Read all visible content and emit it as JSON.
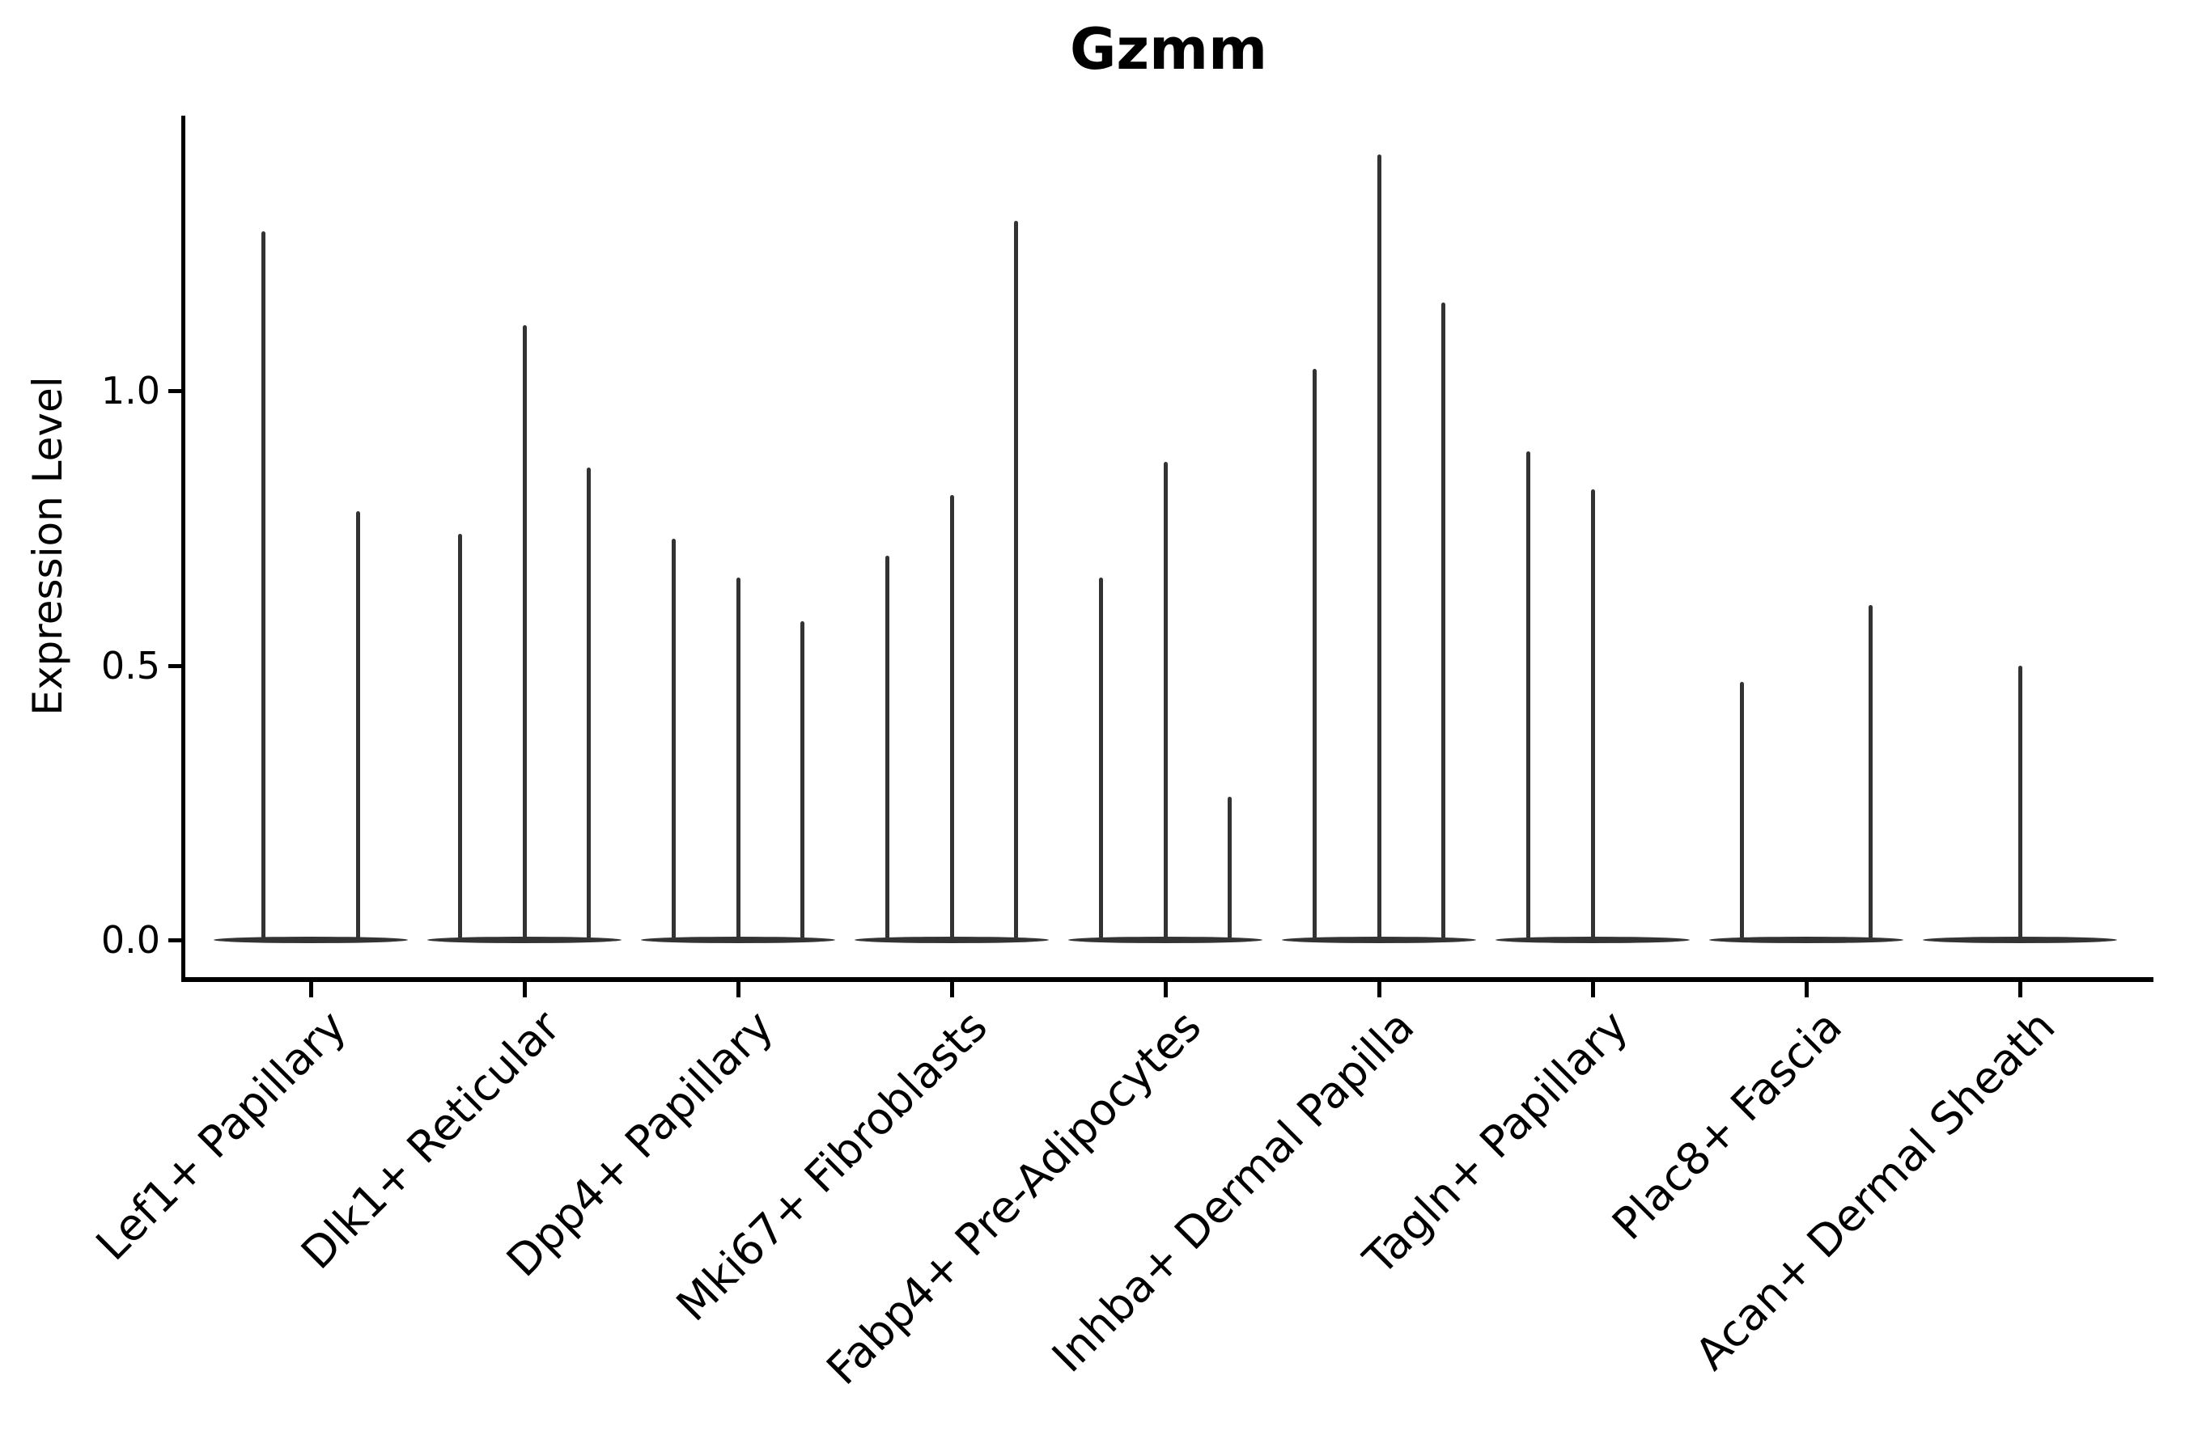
{
  "colors": {
    "violin": "#333333",
    "axis": "#000000",
    "text": "#000000",
    "background": "#ffffff"
  },
  "chart_data": {
    "type": "violin",
    "title": "Gzmm",
    "xlabel": "",
    "ylabel": "Expression Level",
    "yticks": [
      0.0,
      0.5,
      1.0
    ],
    "ylim": [
      -0.07,
      1.5
    ],
    "grid": false,
    "legend": "none",
    "description": "Violin plot of Gzmm expression level per fibroblast cluster; violins are extremely thin spikes rising from a flat base at 0, up to 3 split violins per cluster",
    "groups": [
      {
        "label": "Lef1+ Papillary",
        "violins": [
          {
            "peak": 1.29,
            "pos": -0.222
          },
          {
            "peak": 0.78,
            "pos": 0.222
          }
        ]
      },
      {
        "label": "Dlk1+ Reticular",
        "violins": [
          {
            "peak": 0.74,
            "pos": -0.3
          },
          {
            "peak": 1.12,
            "pos": 0
          },
          {
            "peak": 0.86,
            "pos": 0.3
          }
        ]
      },
      {
        "label": "Dpp4+ Papillary",
        "violins": [
          {
            "peak": 0.73,
            "pos": -0.3
          },
          {
            "peak": 0.66,
            "pos": 0
          },
          {
            "peak": 0.58,
            "pos": 0.3
          }
        ]
      },
      {
        "label": "Mki67+ Fibroblasts",
        "violins": [
          {
            "peak": 0.7,
            "pos": -0.3
          },
          {
            "peak": 0.81,
            "pos": 0
          },
          {
            "peak": 1.31,
            "pos": 0.3
          }
        ]
      },
      {
        "label": "Fabp4+ Pre-Adipocytes",
        "violins": [
          {
            "peak": 0.66,
            "pos": -0.3
          },
          {
            "peak": 0.87,
            "pos": 0
          },
          {
            "peak": 0.26,
            "pos": 0.3
          }
        ]
      },
      {
        "label": "Inhba+ Dermal Papilla",
        "violins": [
          {
            "peak": 1.04,
            "pos": -0.3
          },
          {
            "peak": 1.43,
            "pos": 0
          },
          {
            "peak": 1.16,
            "pos": 0.3
          }
        ]
      },
      {
        "label": "Tagln+ Papillary",
        "violins": [
          {
            "peak": 0.89,
            "pos": -0.3
          },
          {
            "peak": 0.82,
            "pos": 0
          }
        ]
      },
      {
        "label": "Plac8+ Fascia",
        "violins": [
          {
            "peak": 0.47,
            "pos": -0.3
          },
          {
            "peak": 0.61,
            "pos": 0.3
          }
        ]
      },
      {
        "label": "Acan+ Dermal Sheath",
        "violins": [
          {
            "peak": 0.5,
            "pos": 0
          }
        ]
      }
    ]
  }
}
